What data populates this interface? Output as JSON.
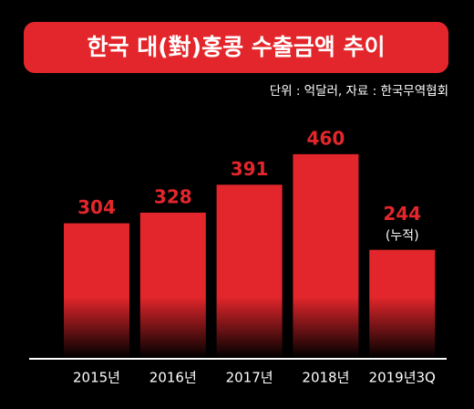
{
  "chart_data": {
    "type": "bar",
    "title": "한국 대(對)홍콩 수출금액 추이",
    "subtitle": "단위 : 억달러, 자료 : 한국무역협회",
    "categories": [
      "2015년",
      "2016년",
      "2017년",
      "2018년",
      "2019년3Q"
    ],
    "values": [
      304,
      328,
      391,
      460,
      244
    ],
    "annotation": "(누적)",
    "color": "#e3262b"
  }
}
